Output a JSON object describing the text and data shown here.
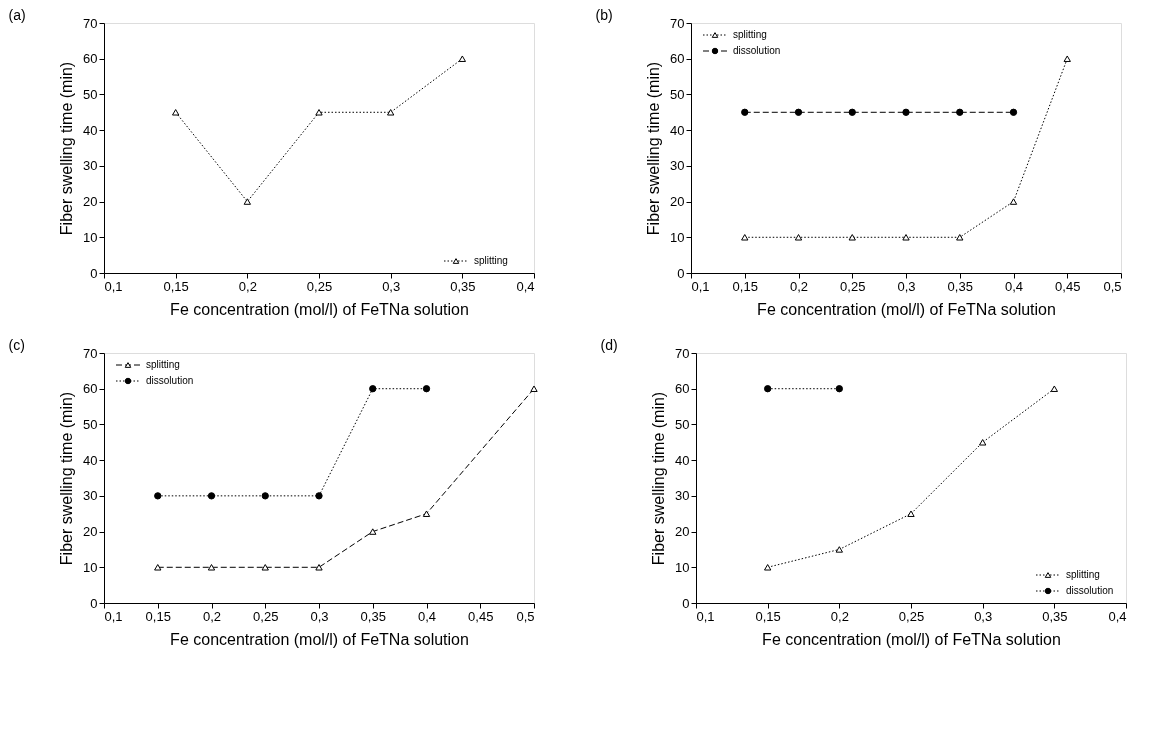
{
  "chart_data": [
    {
      "type": "line",
      "title": "(a)",
      "xlabel": "Fe concentration (mol/l) of FeTNa solution",
      "ylabel": "Fiber swelling time (min)",
      "xlim": [
        0.1,
        0.4
      ],
      "xticks": [
        {
          "value": 0.1,
          "label": "0,1"
        },
        {
          "value": 0.15,
          "label": "0,15"
        },
        {
          "value": 0.2,
          "label": "0,2"
        },
        {
          "value": 0.25,
          "label": "0,25"
        },
        {
          "value": 0.3,
          "label": "0,3"
        },
        {
          "value": 0.35,
          "label": "0,35"
        },
        {
          "value": 0.4,
          "label": "0,4"
        }
      ],
      "ylim": [
        0,
        70
      ],
      "yticks": [
        0,
        10,
        20,
        30,
        40,
        50,
        60,
        70
      ],
      "grid": false,
      "legend": "bottom right",
      "series": [
        {
          "name": "splitting",
          "color": "#000000",
          "marker": "triangle",
          "line_style": "dotted",
          "x": [
            0.15,
            0.2,
            0.25,
            0.3,
            0.35
          ],
          "values": [
            45,
            20,
            45,
            45,
            60
          ]
        }
      ]
    },
    {
      "type": "line",
      "title": "(b)",
      "xlabel": "Fe concentration (mol/l) of FeTNa solution",
      "ylabel": "Fiber swelling time (min)",
      "xlim": [
        0.1,
        0.5
      ],
      "xticks": [
        {
          "value": 0.1,
          "label": "0,1"
        },
        {
          "value": 0.15,
          "label": "0,15"
        },
        {
          "value": 0.2,
          "label": "0,2"
        },
        {
          "value": 0.25,
          "label": "0,25"
        },
        {
          "value": 0.3,
          "label": "0,3"
        },
        {
          "value": 0.35,
          "label": "0,35"
        },
        {
          "value": 0.4,
          "label": "0,4"
        },
        {
          "value": 0.45,
          "label": "0,45"
        },
        {
          "value": 0.5,
          "label": "0,5"
        }
      ],
      "ylim": [
        0,
        70
      ],
      "yticks": [
        0,
        10,
        20,
        30,
        40,
        50,
        60,
        70
      ],
      "grid": false,
      "legend": "top left",
      "series": [
        {
          "name": "splitting",
          "color": "#000000",
          "marker": "triangle",
          "line_style": "dotted",
          "x": [
            0.15,
            0.2,
            0.25,
            0.3,
            0.35,
            0.4,
            0.45
          ],
          "values": [
            10,
            10,
            10,
            10,
            10,
            20,
            60
          ]
        },
        {
          "name": "dissolution",
          "color": "#000000",
          "marker": "circle",
          "line_style": "dashed",
          "x": [
            0.15,
            0.2,
            0.25,
            0.3,
            0.35,
            0.4
          ],
          "values": [
            45,
            45,
            45,
            45,
            45,
            45
          ]
        }
      ]
    },
    {
      "type": "line",
      "title": "(c)",
      "xlabel": "Fe concentration (mol/l) of FeTNa solution",
      "ylabel": "Fiber swelling time (min)",
      "xlim": [
        0.1,
        0.5
      ],
      "xticks": [
        {
          "value": 0.1,
          "label": "0,1"
        },
        {
          "value": 0.15,
          "label": "0,15"
        },
        {
          "value": 0.2,
          "label": "0,2"
        },
        {
          "value": 0.25,
          "label": "0,25"
        },
        {
          "value": 0.3,
          "label": "0,3"
        },
        {
          "value": 0.35,
          "label": "0,35"
        },
        {
          "value": 0.4,
          "label": "0,4"
        },
        {
          "value": 0.45,
          "label": "0,45"
        },
        {
          "value": 0.5,
          "label": "0,5"
        }
      ],
      "ylim": [
        0,
        70
      ],
      "yticks": [
        0,
        10,
        20,
        30,
        40,
        50,
        60,
        70
      ],
      "grid": false,
      "legend": "top left",
      "series": [
        {
          "name": "splitting",
          "color": "#000000",
          "marker": "triangle",
          "line_style": "dashed",
          "x": [
            0.15,
            0.2,
            0.25,
            0.3,
            0.35,
            0.4,
            0.5
          ],
          "values": [
            10,
            10,
            10,
            10,
            20,
            25,
            60
          ]
        },
        {
          "name": "dissolution",
          "color": "#000000",
          "marker": "circle",
          "line_style": "dotted",
          "x": [
            0.15,
            0.2,
            0.25,
            0.3,
            0.35,
            0.4
          ],
          "values": [
            30,
            30,
            30,
            30,
            60,
            60
          ]
        }
      ]
    },
    {
      "type": "line",
      "title": "(d)",
      "xlabel": "Fe concentration (mol/l) of FeTNa solution",
      "ylabel": "Fiber swelling time (min)",
      "xlim": [
        0.1,
        0.4
      ],
      "xticks": [
        {
          "value": 0.1,
          "label": "0,1"
        },
        {
          "value": 0.15,
          "label": "0,15"
        },
        {
          "value": 0.2,
          "label": "0,2"
        },
        {
          "value": 0.25,
          "label": "0,25"
        },
        {
          "value": 0.3,
          "label": "0,3"
        },
        {
          "value": 0.35,
          "label": "0,35"
        },
        {
          "value": 0.4,
          "label": "0,4"
        }
      ],
      "ylim": [
        0,
        70
      ],
      "yticks": [
        0,
        10,
        20,
        30,
        40,
        50,
        60,
        70
      ],
      "grid": false,
      "legend": "bottom right",
      "series": [
        {
          "name": "splitting",
          "color": "#000000",
          "marker": "triangle",
          "line_style": "dotted",
          "x": [
            0.15,
            0.2,
            0.25,
            0.3,
            0.35
          ],
          "values": [
            10,
            15,
            25,
            45,
            60
          ]
        },
        {
          "name": "dissolution",
          "color": "#000000",
          "marker": "circle",
          "line_style": "dotted",
          "x": [
            0.15,
            0.2
          ],
          "values": [
            60,
            60
          ]
        }
      ]
    }
  ]
}
